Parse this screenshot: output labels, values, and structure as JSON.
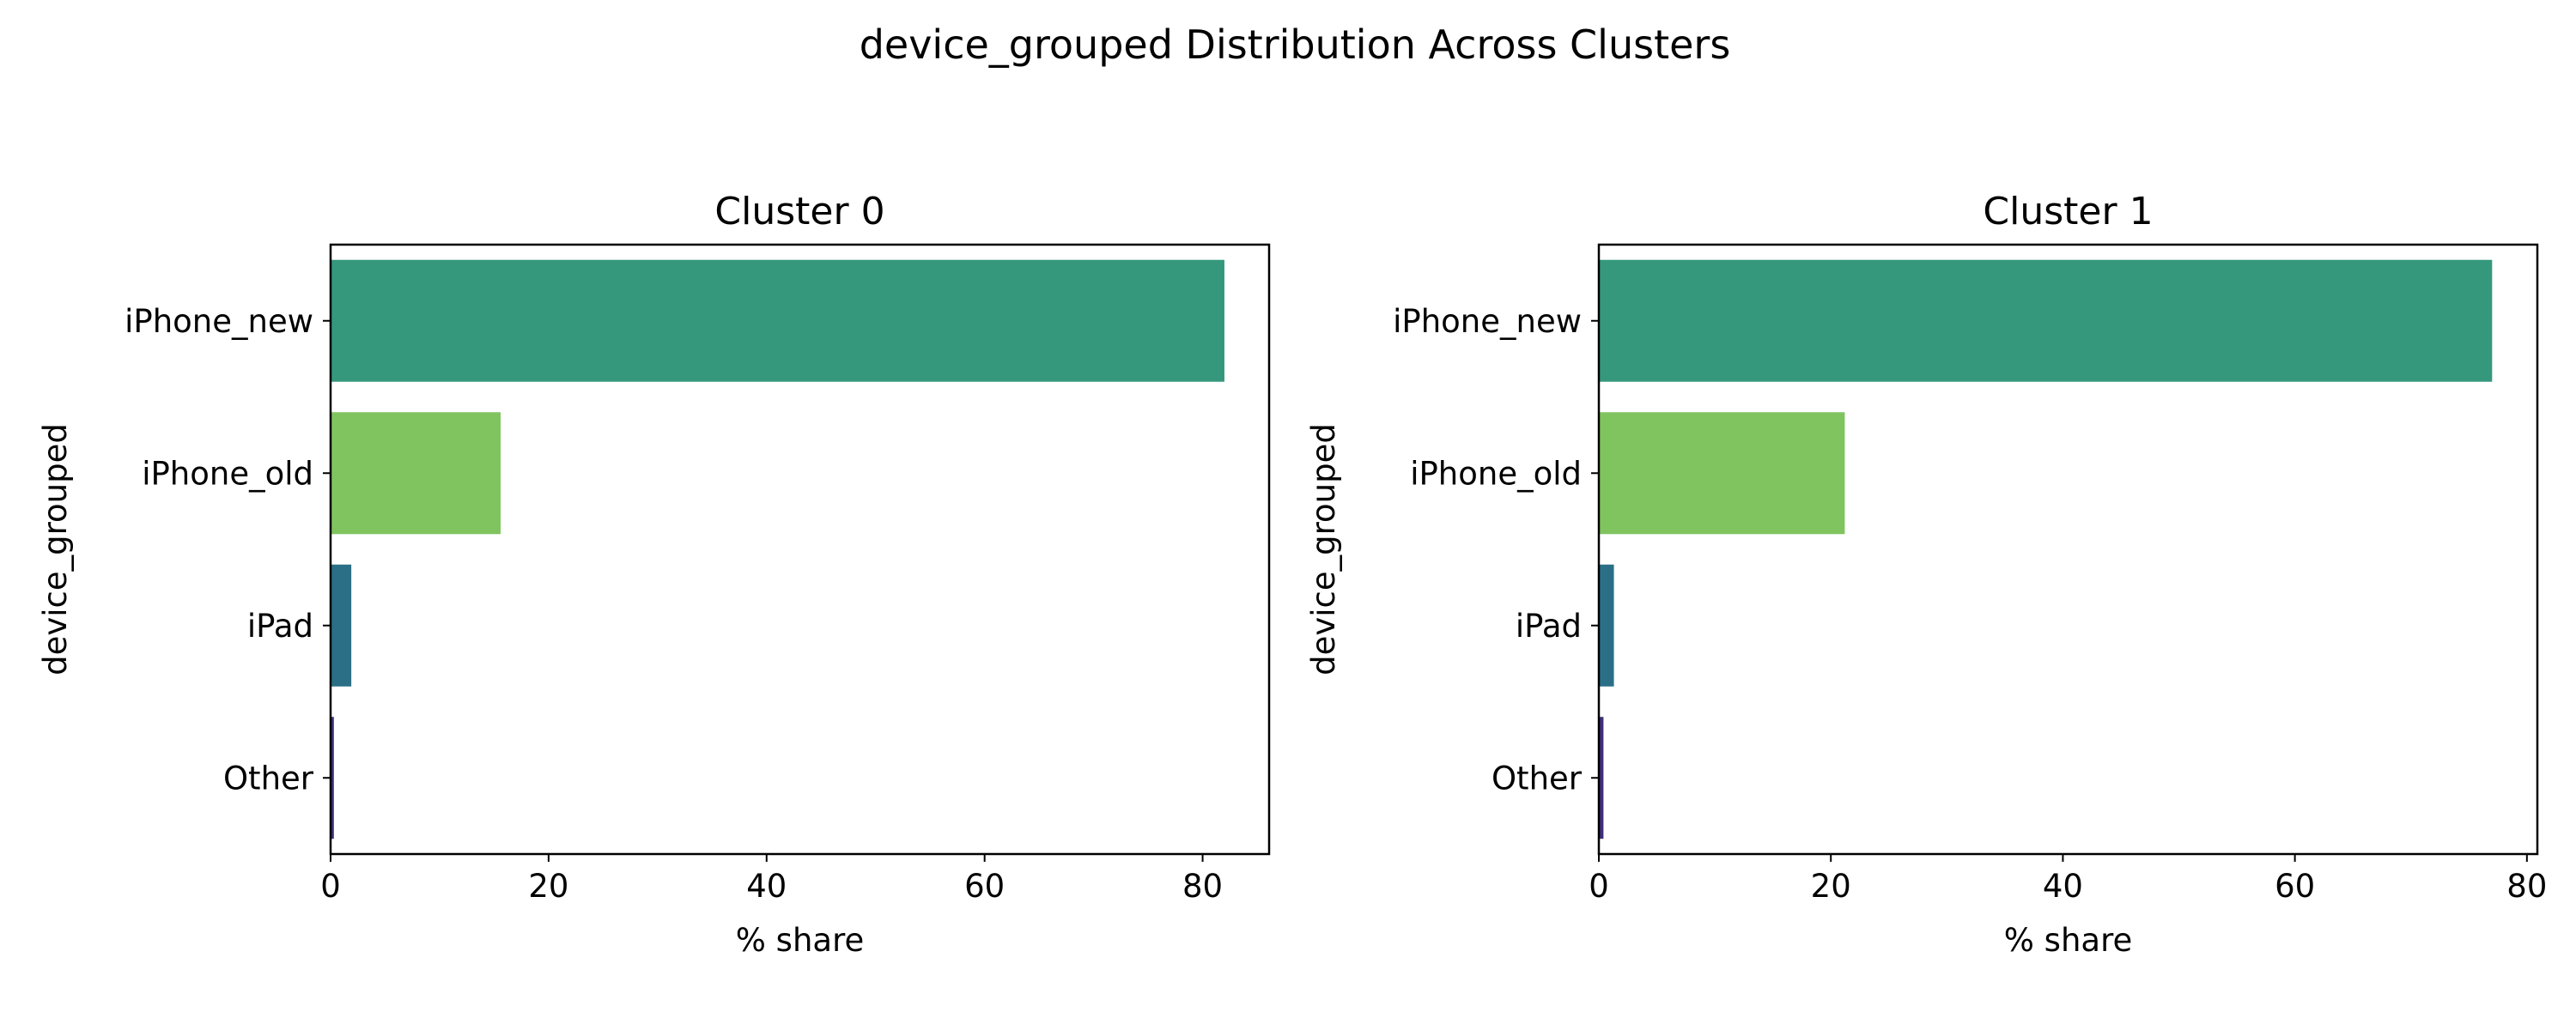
{
  "figure": {
    "title": "device_grouped Distribution Across Clusters"
  },
  "chart_data": [
    {
      "type": "bar",
      "orientation": "horizontal",
      "title": "Cluster 0",
      "xlabel": "% share",
      "ylabel": "device_grouped",
      "categories": [
        "iPhone_new",
        "iPhone_old",
        "iPad",
        "Other"
      ],
      "values": [
        82.0,
        15.6,
        1.9,
        0.3
      ],
      "colors": [
        "#35987c",
        "#80c45f",
        "#2b6f86",
        "#3f2f79"
      ],
      "xlim": [
        0,
        86.1
      ],
      "xticks": [
        0,
        20,
        40,
        60,
        80
      ],
      "grid": false,
      "legend": "none"
    },
    {
      "type": "bar",
      "orientation": "horizontal",
      "title": "Cluster 1",
      "xlabel": "% share",
      "ylabel": "device_grouped",
      "categories": [
        "iPhone_new",
        "iPhone_old",
        "iPad",
        "Other"
      ],
      "values": [
        77.0,
        21.2,
        1.3,
        0.4
      ],
      "colors": [
        "#35987c",
        "#80c45f",
        "#2b6f86",
        "#3f2f79"
      ],
      "xlim": [
        0,
        80.9
      ],
      "xticks": [
        0,
        20,
        40,
        60,
        80
      ],
      "grid": false,
      "legend": "none"
    }
  ]
}
